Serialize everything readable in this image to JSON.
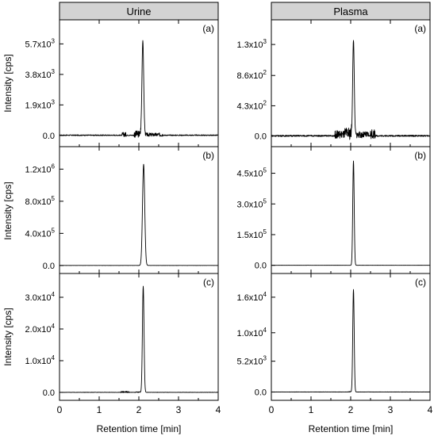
{
  "figure": {
    "xlabel": "Retention time [min]",
    "ylabel": "Intensity [cps]",
    "xticks": [
      "0",
      "1",
      "2",
      "3",
      "4"
    ]
  },
  "chart_data": [
    {
      "type": "line",
      "column": "Urine",
      "panel": "(a)",
      "xlim": [
        0,
        4
      ],
      "ylim": [
        -700,
        7200
      ],
      "yticks": [
        0,
        1900,
        3800,
        5700
      ],
      "ytick_labels": [
        "0.0",
        "1.9x10^3",
        "3.8x10^3",
        "5.7x10^3"
      ],
      "peak": {
        "x": 2.1,
        "y": 5900,
        "width": 0.022
      },
      "noise": {
        "level": 60,
        "spans": [
          [
            1.58,
            1.68,
            280
          ],
          [
            1.88,
            2.06,
            420
          ],
          [
            2.14,
            2.6,
            220
          ]
        ]
      }
    },
    {
      "type": "line",
      "column": "Urine",
      "panel": "(b)",
      "xlim": [
        0,
        4
      ],
      "ylim": [
        -100000,
        1480000
      ],
      "yticks": [
        0,
        400000,
        800000,
        1200000
      ],
      "ytick_labels": [
        "0.0",
        "4.0x10^5",
        "8.0x10^5",
        "1.2x10^6"
      ],
      "peak": {
        "x": 2.12,
        "y": 1260000,
        "width": 0.028
      },
      "noise": {
        "level": 1500,
        "spans": []
      }
    },
    {
      "type": "line",
      "column": "Urine",
      "panel": "(c)",
      "xlim": [
        0,
        4
      ],
      "ylim": [
        -2500,
        37500
      ],
      "yticks": [
        0,
        10000,
        20000,
        30000
      ],
      "ytick_labels": [
        "0.0",
        "1.0x10^4",
        "2.0x10^4",
        "3.0x10^4"
      ],
      "peak": {
        "x": 2.11,
        "y": 33500,
        "width": 0.02
      },
      "noise": {
        "level": 90,
        "spans": [
          [
            1.55,
            1.75,
            500
          ],
          [
            1.9,
            2.05,
            300
          ]
        ]
      }
    },
    {
      "type": "line",
      "column": "Plasma",
      "panel": "(a)",
      "xlim": [
        0,
        4
      ],
      "ylim": [
        -150,
        1650
      ],
      "yticks": [
        0,
        430,
        860,
        1300
      ],
      "ytick_labels": [
        "0.0",
        "4.3x10^2",
        "8.6x10^2",
        "1.3x10^3"
      ],
      "peak": {
        "x": 2.07,
        "y": 1360,
        "width": 0.02
      },
      "noise": {
        "level": 20,
        "spans": [
          [
            1.6,
            1.85,
            110
          ],
          [
            1.85,
            2.02,
            170
          ],
          [
            2.12,
            2.45,
            90
          ],
          [
            2.5,
            2.62,
            130
          ]
        ]
      }
    },
    {
      "type": "line",
      "column": "Plasma",
      "panel": "(b)",
      "xlim": [
        0,
        4
      ],
      "ylim": [
        -40000,
        580000
      ],
      "yticks": [
        0,
        150000,
        300000,
        450000
      ],
      "ytick_labels": [
        "0.0",
        "1.5x10^5",
        "3.0x10^5",
        "4.5x10^5"
      ],
      "peak": {
        "x": 2.07,
        "y": 510000,
        "width": 0.018
      },
      "noise": {
        "level": 500,
        "spans": []
      }
    },
    {
      "type": "line",
      "column": "Plasma",
      "panel": "(c)",
      "xlim": [
        0,
        4
      ],
      "ylim": [
        -1400,
        20000
      ],
      "yticks": [
        0,
        5200,
        10000,
        16000
      ],
      "ytick_labels": [
        "0.0",
        "5.2x10^3",
        "1.0x10^4",
        "1.6x10^4"
      ],
      "peak": {
        "x": 2.07,
        "y": 17300,
        "width": 0.018
      },
      "noise": {
        "level": 40,
        "spans": [
          [
            1.95,
            2.02,
            150
          ]
        ]
      }
    }
  ]
}
